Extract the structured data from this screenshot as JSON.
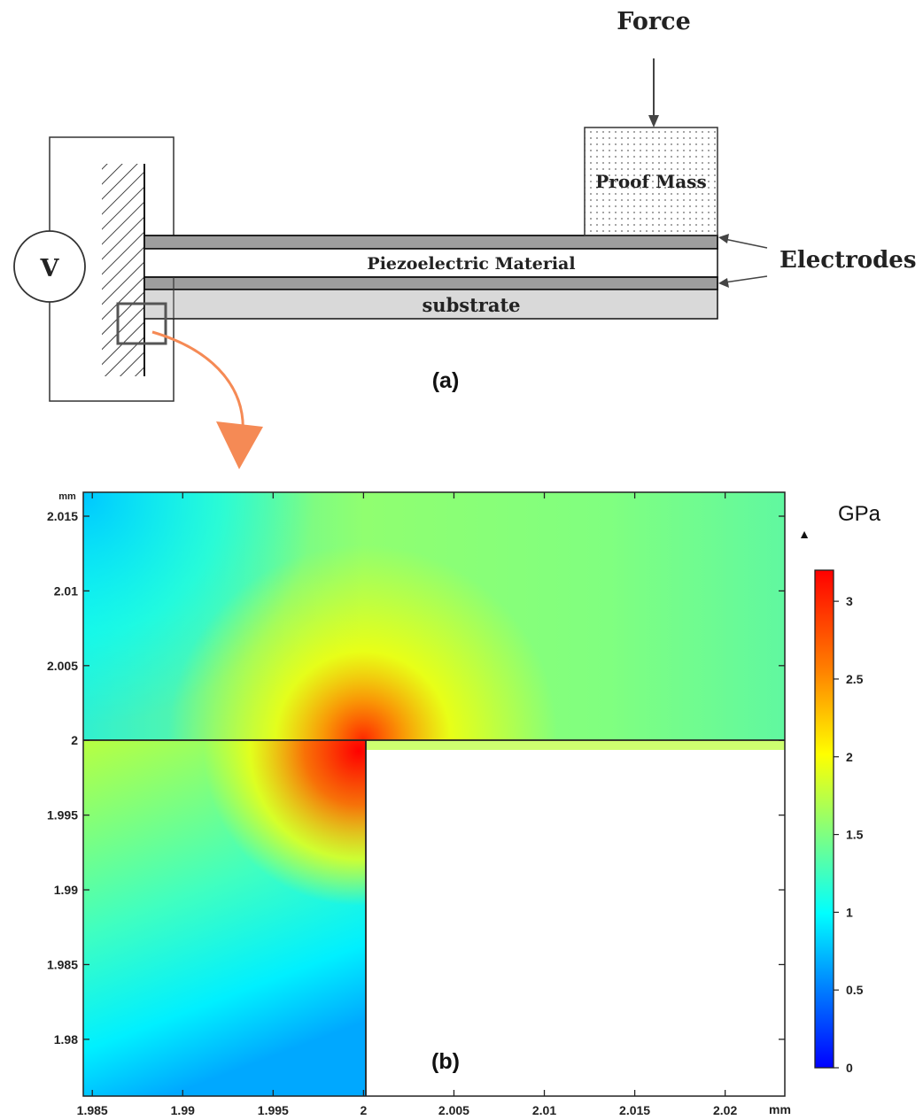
{
  "panel_a": {
    "voltage_source_label": "V",
    "force_label": "Force",
    "proof_mass_label": "Proof Mass",
    "piezo_label": "Piezoelectric Material",
    "substrate_label": "substrate",
    "electrodes_label": "Electrodes",
    "caption": "(a)",
    "colors": {
      "electrode": "#9e9e9e",
      "substrate": "#d9d9d9",
      "zoom_arrow": "#f58a55"
    }
  },
  "panel_b": {
    "caption": "(b)",
    "y_unit": "mm",
    "x_unit": "mm",
    "x_ticks": [
      "1.985",
      "1.99",
      "1.995",
      "2",
      "2.005",
      "2.01",
      "2.015",
      "2.02"
    ],
    "y_ticks": [
      "2.015",
      "2.01",
      "2.005",
      "2",
      "1.995",
      "1.99",
      "1.985",
      "1.98"
    ],
    "xlim": [
      1.9845,
      2.0233
    ],
    "ylim": [
      1.9762,
      2.0166
    ],
    "colorbar": {
      "unit": "GPa",
      "ticks": [
        "3",
        "2.5",
        "2",
        "1.5",
        "1",
        "0.5",
        "0"
      ],
      "range": [
        0,
        3.2
      ],
      "colormap": "rainbow",
      "max_marker": "▲"
    },
    "colors": {
      "low": "#0000ff",
      "mid": "#ffff00",
      "high": "#ff0000"
    }
  }
}
